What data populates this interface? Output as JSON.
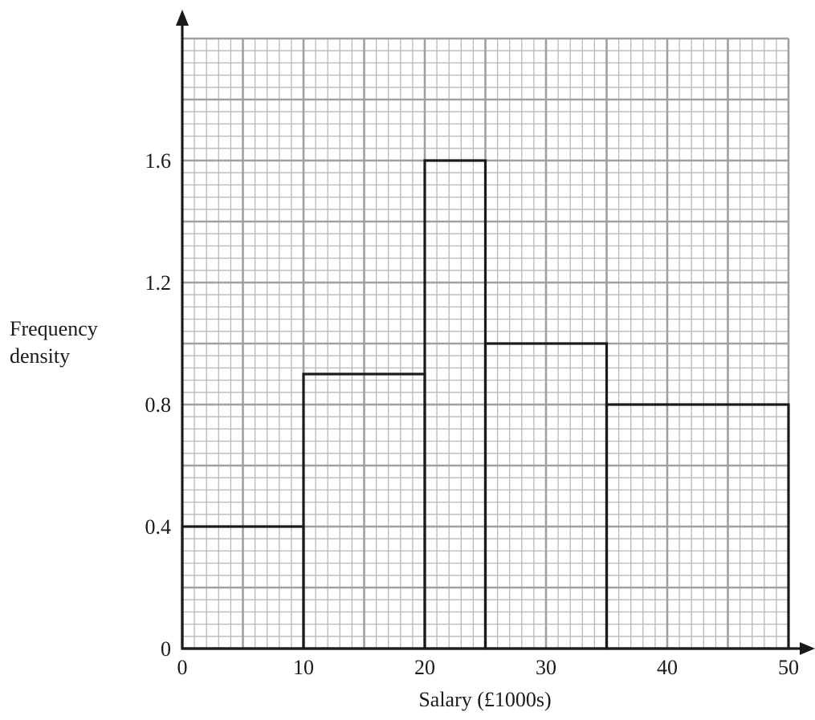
{
  "chart_data": {
    "type": "histogram",
    "xlabel": "Salary (£1000s)",
    "ylabel": [
      "Frequency",
      "density"
    ],
    "xlim": [
      0,
      50
    ],
    "ylim": [
      0,
      2.0
    ],
    "x_ticks": [
      0,
      10,
      20,
      30,
      40,
      50
    ],
    "x_tick_labels": [
      "0",
      "10",
      "20",
      "30",
      "40",
      "50"
    ],
    "y_ticks": [
      0,
      0.4,
      0.8,
      1.2,
      1.6
    ],
    "y_tick_labels": [
      "0",
      "0.4",
      "0.8",
      "1.2",
      "1.6"
    ],
    "bins": [
      {
        "x_start": 0,
        "x_end": 10,
        "frequency_density": 0.4
      },
      {
        "x_start": 10,
        "x_end": 20,
        "frequency_density": 0.9
      },
      {
        "x_start": 20,
        "x_end": 25,
        "frequency_density": 1.6
      },
      {
        "x_start": 25,
        "x_end": 35,
        "frequency_density": 1.0
      },
      {
        "x_start": 35,
        "x_end": 50,
        "frequency_density": 0.8
      }
    ],
    "grid": {
      "on": true,
      "minor_x_step": 1,
      "major_x_step": 5,
      "minor_y_step": 0.04,
      "major_y_step": 0.2
    },
    "colors": {
      "major_grid": "#a0a0a0",
      "minor_grid": "#b8b8b8",
      "bars": "#1a1a1a",
      "axes": "#1a1a1a"
    }
  }
}
